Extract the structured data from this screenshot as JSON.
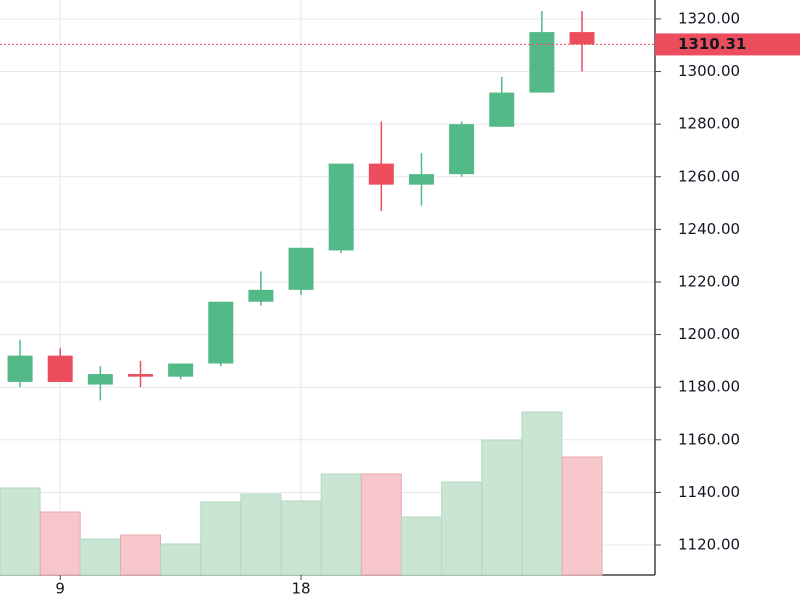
{
  "chart_data": {
    "type": "candlestick",
    "categories": [
      null,
      "9",
      null,
      null,
      null,
      null,
      null,
      "18",
      null,
      null,
      null,
      null,
      null,
      null,
      null
    ],
    "open": [
      1182,
      1192,
      1181,
      1185,
      1184,
      1189,
      1212.5,
      1217,
      1232,
      1265,
      1257,
      1261,
      1279,
      1292,
      1315
    ],
    "high": [
      1198,
      1195,
      1188,
      1190,
      1189,
      1212.5,
      1224,
      1233,
      1265,
      1281,
      1269,
      1281,
      1298,
      1323,
      1323
    ],
    "low": [
      1180,
      1182,
      1175,
      1180,
      1183,
      1188,
      1211,
      1215,
      1231,
      1247,
      1249,
      1260,
      1279,
      1292,
      1300
    ],
    "close": [
      1192,
      1182,
      1185,
      1184,
      1189,
      1212.5,
      1217,
      1233,
      1265,
      1257,
      1261,
      1280,
      1292,
      1315,
      1310.31
    ],
    "volume": [
      87,
      63,
      36,
      40,
      31,
      73,
      81,
      74,
      101,
      101,
      58,
      93,
      135,
      163,
      118
    ],
    "volume_ylim": [
      0,
      200
    ],
    "up_color": "#53b987",
    "down_color": "#eb4d5c",
    "volume_up_color": "#c8e6d3",
    "volume_down_color": "#f6c6ca",
    "ylim": [
      1108.6,
      1327.2
    ],
    "yticks": [
      {
        "value": 1120,
        "label": "1120.00"
      },
      {
        "value": 1140,
        "label": "1140.00"
      },
      {
        "value": 1160,
        "label": "1160.00"
      },
      {
        "value": 1180,
        "label": "1180.00"
      },
      {
        "value": 1200,
        "label": "1200.00"
      },
      {
        "value": 1220,
        "label": "1220.00"
      },
      {
        "value": 1240,
        "label": "1240.00"
      },
      {
        "value": 1260,
        "label": "1260.00"
      },
      {
        "value": 1280,
        "label": "1280.00"
      },
      {
        "value": 1300,
        "label": "1300.00"
      },
      {
        "value": 1320,
        "label": "1320.00"
      }
    ],
    "price_line": {
      "value": 1310.31,
      "label": "1310.31"
    },
    "grid": true
  }
}
